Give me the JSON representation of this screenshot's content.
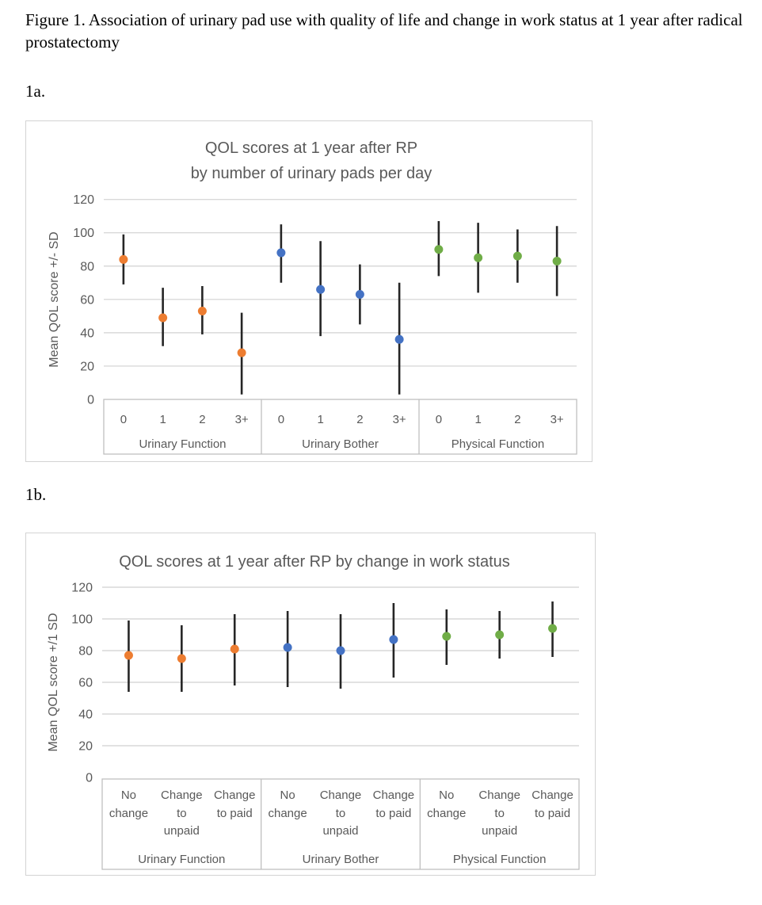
{
  "figure": {
    "caption": "Figure 1. Association of urinary pad use with quality of life and change in work status at 1 year after radical prostatectomy",
    "panel_a_label": "1a.",
    "panel_b_label": "1b."
  },
  "colors": {
    "orange": "#ED7D31",
    "blue": "#4472C4",
    "green": "#70AD47",
    "error_bar": "#262626",
    "gridline": "#D9D9D9",
    "axis_line": "#BFBFBF",
    "title_text": "#595959",
    "axis_text": "#595959",
    "panel_border": "#D3D3D3"
  },
  "chart_data": [
    {
      "id": "qol_by_pads",
      "type": "scatter",
      "error_bars": true,
      "title_lines": [
        "QOL scores at 1 year after RP",
        "by number of urinary pads per day"
      ],
      "ylabel": "Mean QOL score +/- SD",
      "ylim": [
        0,
        120
      ],
      "yticks": [
        0,
        20,
        40,
        60,
        80,
        100,
        120
      ],
      "grid": true,
      "legend": "none",
      "groups": [
        {
          "name": "Urinary Function",
          "color_key": "orange",
          "categories": [
            "0",
            "1",
            "2",
            "3+"
          ],
          "points": [
            {
              "mean": 84,
              "lo": 69,
              "hi": 99
            },
            {
              "mean": 49,
              "lo": 32,
              "hi": 67
            },
            {
              "mean": 53,
              "lo": 39,
              "hi": 68
            },
            {
              "mean": 28,
              "lo": 3,
              "hi": 52
            }
          ]
        },
        {
          "name": "Urinary Bother",
          "color_key": "blue",
          "categories": [
            "0",
            "1",
            "2",
            "3+"
          ],
          "points": [
            {
              "mean": 88,
              "lo": 70,
              "hi": 105
            },
            {
              "mean": 66,
              "lo": 38,
              "hi": 95
            },
            {
              "mean": 63,
              "lo": 45,
              "hi": 81
            },
            {
              "mean": 36,
              "lo": 3,
              "hi": 70
            }
          ]
        },
        {
          "name": "Physical Function",
          "color_key": "green",
          "categories": [
            "0",
            "1",
            "2",
            "3+"
          ],
          "points": [
            {
              "mean": 90,
              "lo": 74,
              "hi": 107
            },
            {
              "mean": 85,
              "lo": 64,
              "hi": 106
            },
            {
              "mean": 86,
              "lo": 70,
              "hi": 102
            },
            {
              "mean": 83,
              "lo": 62,
              "hi": 104
            }
          ]
        }
      ]
    },
    {
      "id": "qol_by_work",
      "type": "scatter",
      "error_bars": true,
      "title_lines": [
        "QOL scores at 1 year after RP by change in work status"
      ],
      "ylabel": "Mean QOL score +/1 SD",
      "ylim": [
        0,
        120
      ],
      "yticks": [
        0,
        20,
        40,
        60,
        80,
        100,
        120
      ],
      "grid": true,
      "legend": "none",
      "groups": [
        {
          "name": "Urinary Function",
          "color_key": "orange",
          "categories": [
            [
              "No",
              "change"
            ],
            [
              "Change",
              "to",
              "unpaid"
            ],
            [
              "Change",
              "to paid"
            ]
          ],
          "points": [
            {
              "mean": 77,
              "lo": 54,
              "hi": 99
            },
            {
              "mean": 75,
              "lo": 54,
              "hi": 96
            },
            {
              "mean": 81,
              "lo": 58,
              "hi": 103
            }
          ]
        },
        {
          "name": "Urinary Bother",
          "color_key": "blue",
          "categories": [
            [
              "No",
              "change"
            ],
            [
              "Change",
              "to",
              "unpaid"
            ],
            [
              "Change",
              "to paid"
            ]
          ],
          "points": [
            {
              "mean": 82,
              "lo": 57,
              "hi": 105
            },
            {
              "mean": 80,
              "lo": 56,
              "hi": 103
            },
            {
              "mean": 87,
              "lo": 63,
              "hi": 110
            }
          ]
        },
        {
          "name": "Physical Function",
          "color_key": "green",
          "categories": [
            [
              "No",
              "change"
            ],
            [
              "Change",
              "to",
              "unpaid"
            ],
            [
              "Change",
              "to paid"
            ]
          ],
          "points": [
            {
              "mean": 89,
              "lo": 71,
              "hi": 106
            },
            {
              "mean": 90,
              "lo": 75,
              "hi": 105
            },
            {
              "mean": 94,
              "lo": 76,
              "hi": 111
            }
          ]
        }
      ]
    }
  ]
}
